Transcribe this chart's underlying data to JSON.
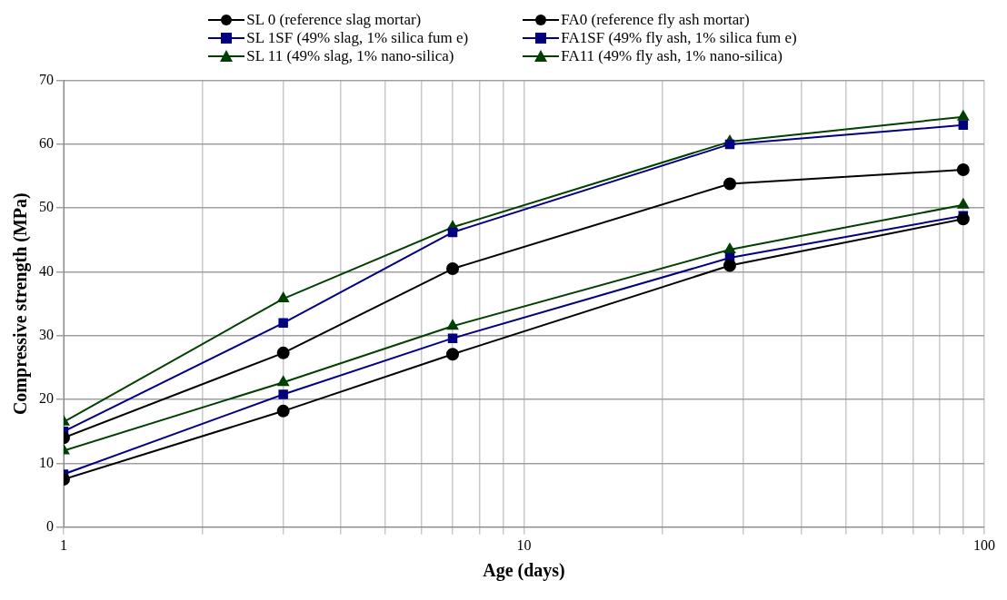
{
  "chart_data": {
    "type": "line",
    "xlabel": "Age (days)",
    "ylabel": "Compressive strength (MPa)",
    "x": [
      1,
      3,
      7,
      28,
      90
    ],
    "log": "x",
    "grid": true,
    "legend": "top",
    "xlim": [
      1,
      100
    ],
    "xticks": [
      1,
      {
        "value": 2,
        "label": null
      },
      {
        "value": 3,
        "label": null
      },
      {
        "value": 4,
        "label": null
      },
      {
        "value": 5,
        "label": null
      },
      {
        "value": 6,
        "label": null
      },
      {
        "value": 7,
        "label": null
      },
      {
        "value": 8,
        "label": null
      },
      {
        "value": 9,
        "label": null
      },
      10,
      {
        "value": 20,
        "label": null
      },
      {
        "value": 30,
        "label": null
      },
      {
        "value": 40,
        "label": null
      },
      {
        "value": 50,
        "label": null
      },
      {
        "value": 60,
        "label": null
      },
      {
        "value": 70,
        "label": null
      },
      {
        "value": 80,
        "label": null
      },
      {
        "value": 90,
        "label": null
      },
      100
    ],
    "ylim": [
      0,
      70
    ],
    "yticks": [
      0,
      10,
      20,
      30,
      40,
      50,
      60,
      70
    ],
    "series": [
      {
        "name": "SL 0 (reference slag mortar)",
        "color": "#000000",
        "marker": "circle",
        "values": [
          14,
          27.3,
          40.5,
          53.8,
          56
        ]
      },
      {
        "name": "FA0 (reference fly ash mortar)",
        "color": "#000000",
        "marker": "circle",
        "values": [
          7.5,
          18.2,
          27.1,
          41,
          48.3
        ]
      },
      {
        "name": "SL 1SF (49% slag, 1% silica fum e)",
        "color": "#000080",
        "marker": "square",
        "values": [
          15,
          32,
          46.2,
          60,
          63
        ]
      },
      {
        "name": "FA1SF (49% fly ash, 1% silica fum e)",
        "color": "#000080",
        "marker": "square",
        "values": [
          8.3,
          20.8,
          29.6,
          42.2,
          48.8
        ]
      },
      {
        "name": "SL 11 (49% slag, 1% nano-silica)",
        "color": "#004000",
        "marker": "triangle",
        "values": [
          16.5,
          35.8,
          47,
          60.4,
          64.3
        ]
      },
      {
        "name": "FA11 (49% fly ash, 1% nano-silica)",
        "color": "#004000",
        "marker": "triangle",
        "values": [
          12,
          22.7,
          31.5,
          43.5,
          50.5
        ]
      }
    ]
  }
}
